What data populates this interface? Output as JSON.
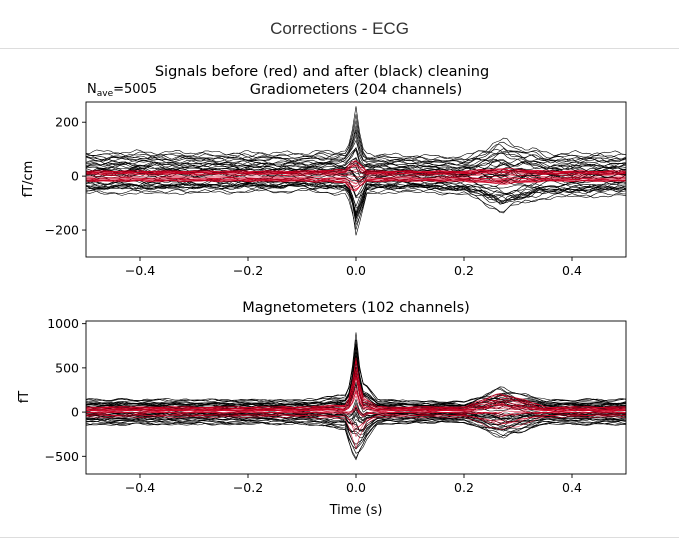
{
  "window": {
    "title": "Corrections - ECG"
  },
  "figure": {
    "suptitle": "Signals before (red) and after (black) cleaning",
    "nave_label": "N",
    "nave_sub": "ave",
    "nave_value": "=5005"
  },
  "colors": {
    "before": "#cc0022",
    "after": "#000000"
  },
  "chart_data": [
    {
      "type": "line",
      "title": "Gradiometers (204 channels)",
      "xlabel": "",
      "ylabel": "fT/cm",
      "xlim": [
        -0.5,
        0.5
      ],
      "ylim": [
        -300,
        275
      ],
      "xticks": [
        -0.4,
        -0.2,
        0.0,
        0.2,
        0.4
      ],
      "xtick_labels": [
        "−0.4",
        "−0.2",
        "0.0",
        "0.2",
        "0.4"
      ],
      "yticks": [
        200,
        0,
        -200
      ],
      "ytick_labels": [
        "200",
        "0",
        "−200"
      ],
      "n_channels": 204,
      "envelope": {
        "time_s": [
          -0.5,
          -0.1,
          -0.02,
          -0.01,
          0.0,
          0.01,
          0.02,
          0.04,
          0.1,
          0.2,
          0.27,
          0.35,
          0.5
        ],
        "after_max": [
          95,
          90,
          100,
          140,
          245,
          120,
          90,
          85,
          80,
          75,
          140,
          90,
          90
        ],
        "after_min": [
          -80,
          -70,
          -80,
          -120,
          -265,
          -170,
          -80,
          -75,
          -70,
          -80,
          -155,
          -95,
          -85
        ],
        "before_max": [
          20,
          20,
          25,
          55,
          65,
          45,
          20,
          20,
          20,
          20,
          30,
          20,
          20
        ],
        "before_min": [
          -20,
          -20,
          -25,
          -50,
          -60,
          -40,
          -20,
          -20,
          -20,
          -20,
          -30,
          -20,
          -20
        ]
      },
      "grid": false
    },
    {
      "type": "line",
      "title": "Magnetometers (102 channels)",
      "xlabel": "Time (s)",
      "ylabel": "fT",
      "xlim": [
        -0.5,
        0.5
      ],
      "ylim": [
        -700,
        1030
      ],
      "xticks": [
        -0.4,
        -0.2,
        0.0,
        0.2,
        0.4
      ],
      "xtick_labels": [
        "−0.4",
        "−0.2",
        "0.0",
        "0.2",
        "0.4"
      ],
      "yticks": [
        1000,
        500,
        0,
        -500
      ],
      "ytick_labels": [
        "1000",
        "500",
        "0",
        "−500"
      ],
      "n_channels": 102,
      "envelope": {
        "time_s": [
          -0.5,
          -0.1,
          -0.02,
          -0.01,
          0.0,
          0.01,
          0.02,
          0.04,
          0.1,
          0.2,
          0.27,
          0.35,
          0.5
        ],
        "after_max": [
          150,
          140,
          200,
          350,
          950,
          350,
          300,
          150,
          130,
          120,
          280,
          140,
          150
        ],
        "after_min": [
          -150,
          -140,
          -200,
          -400,
          -600,
          -450,
          -300,
          -150,
          -130,
          -120,
          -300,
          -140,
          -150
        ],
        "before_max": [
          60,
          60,
          80,
          200,
          650,
          200,
          150,
          60,
          60,
          60,
          220,
          60,
          60
        ],
        "before_min": [
          -60,
          -60,
          -80,
          -200,
          -450,
          -250,
          -150,
          -60,
          -60,
          -60,
          -220,
          -60,
          -60
        ]
      },
      "grid": false
    }
  ]
}
